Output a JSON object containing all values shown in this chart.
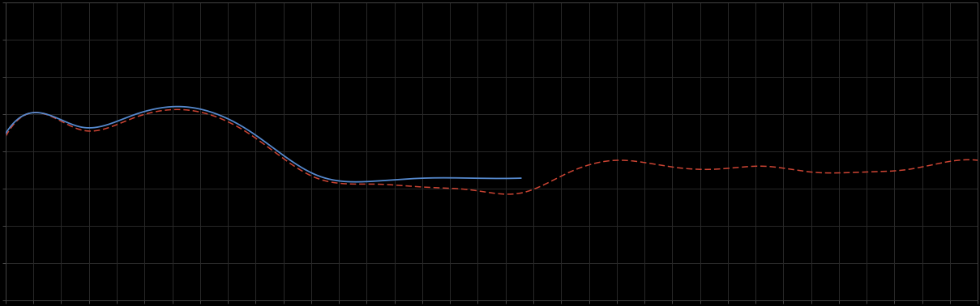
{
  "background_color": "#000000",
  "axes_facecolor": "#000000",
  "grid_color": "#2a2a2a",
  "line_blue_color": "#5588cc",
  "line_red_color": "#cc4433",
  "figsize": [
    12.09,
    3.78
  ],
  "dpi": 100,
  "xlim": [
    0,
    100
  ],
  "ylim": [
    0,
    100
  ],
  "grid_alpha": 1.0,
  "spine_color": "#444444",
  "blue_x": [
    0,
    3,
    8,
    13,
    18,
    25,
    32,
    38,
    43,
    48,
    53
  ],
  "blue_y": [
    56,
    63,
    58,
    62,
    65,
    57,
    42,
    40,
    41,
    41,
    41
  ],
  "red_x": [
    0,
    3,
    8,
    13,
    18,
    25,
    32,
    38,
    43,
    48,
    53,
    58,
    63,
    68,
    73,
    78,
    83,
    88,
    93,
    98,
    100
  ],
  "red_y": [
    55,
    63,
    57,
    61,
    64,
    56,
    41,
    39,
    38,
    37,
    36,
    43,
    47,
    45,
    44,
    45,
    43,
    43,
    44,
    47,
    47
  ],
  "blue_end_x": 53,
  "n_points": 800
}
